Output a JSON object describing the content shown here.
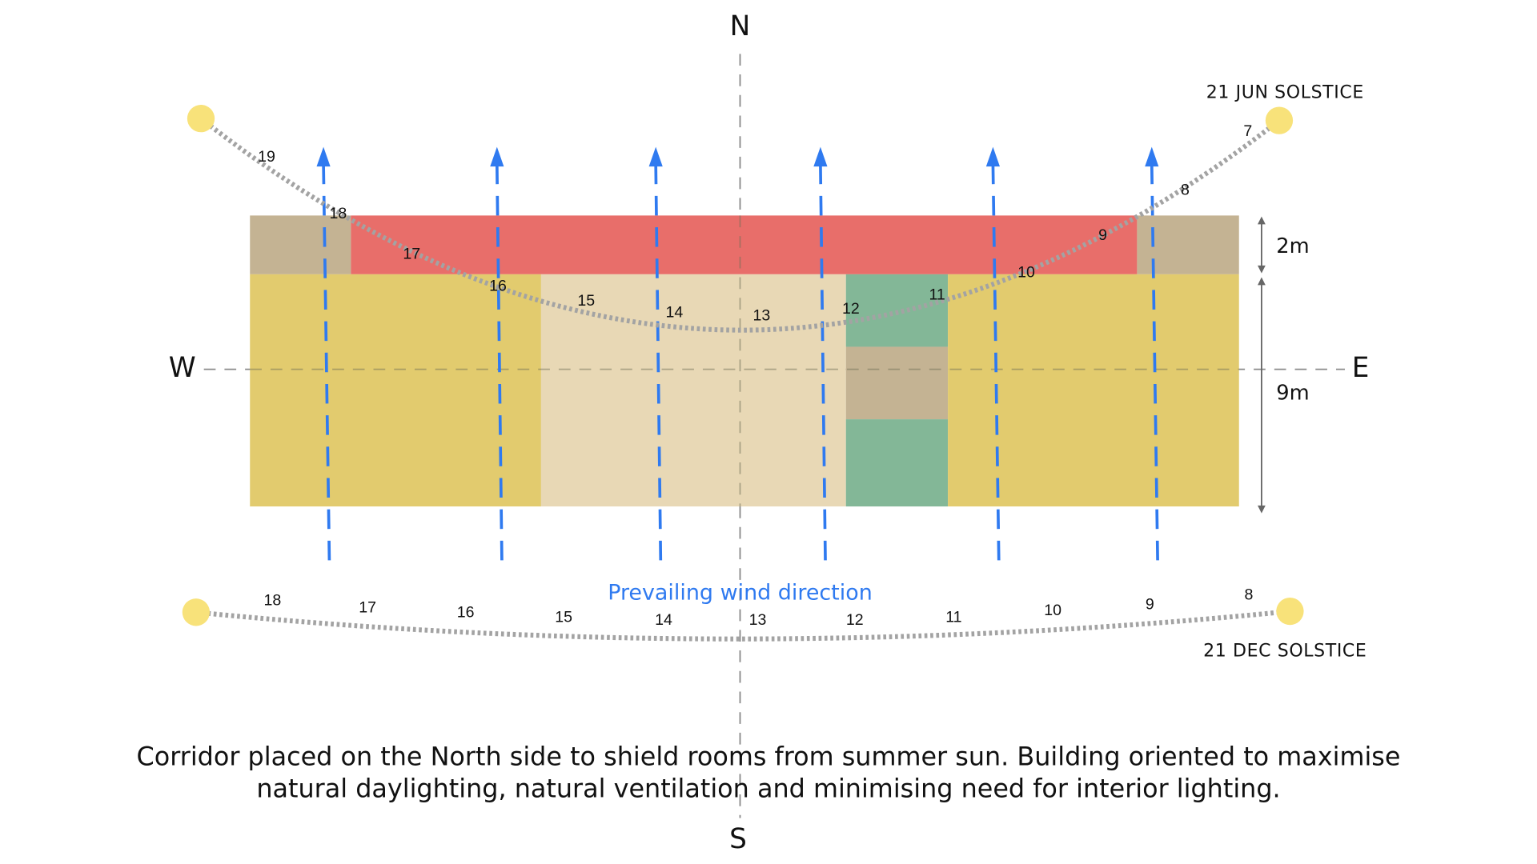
{
  "compass": {
    "north": "N",
    "south": "S",
    "west": "W",
    "east": "E"
  },
  "dimensions": {
    "corridor_depth": "2m",
    "room_depth": "9m"
  },
  "colors": {
    "corridor": "#e86e6a",
    "corridor_end": "#c4b393",
    "room_yellow": "#e2cb6e",
    "room_beige": "#e8d8b5",
    "room_green": "#83b797",
    "room_tan": "#c4b393",
    "wind": "#2f7af0",
    "sun": "#f8e27a",
    "sun_path": "#a3a3a3"
  },
  "summer": {
    "label": "21 JUN SOLSTICE",
    "hours": [
      "19",
      "18",
      "17",
      "16",
      "15",
      "14",
      "13",
      "12",
      "11",
      "10",
      "9",
      "8",
      "7"
    ]
  },
  "winter": {
    "label": "21 DEC SOLSTICE",
    "hours": [
      "18",
      "17",
      "16",
      "15",
      "14",
      "13",
      "12",
      "11",
      "10",
      "9",
      "8"
    ]
  },
  "wind": {
    "label": "Prevailing wind direction",
    "arrow_count": 6
  },
  "caption": {
    "line1": "Corridor placed on the North side to shield rooms from summer sun. Building oriented to maximise",
    "line2": "natural daylighting, natural ventilation and minimising need for interior lighting."
  }
}
